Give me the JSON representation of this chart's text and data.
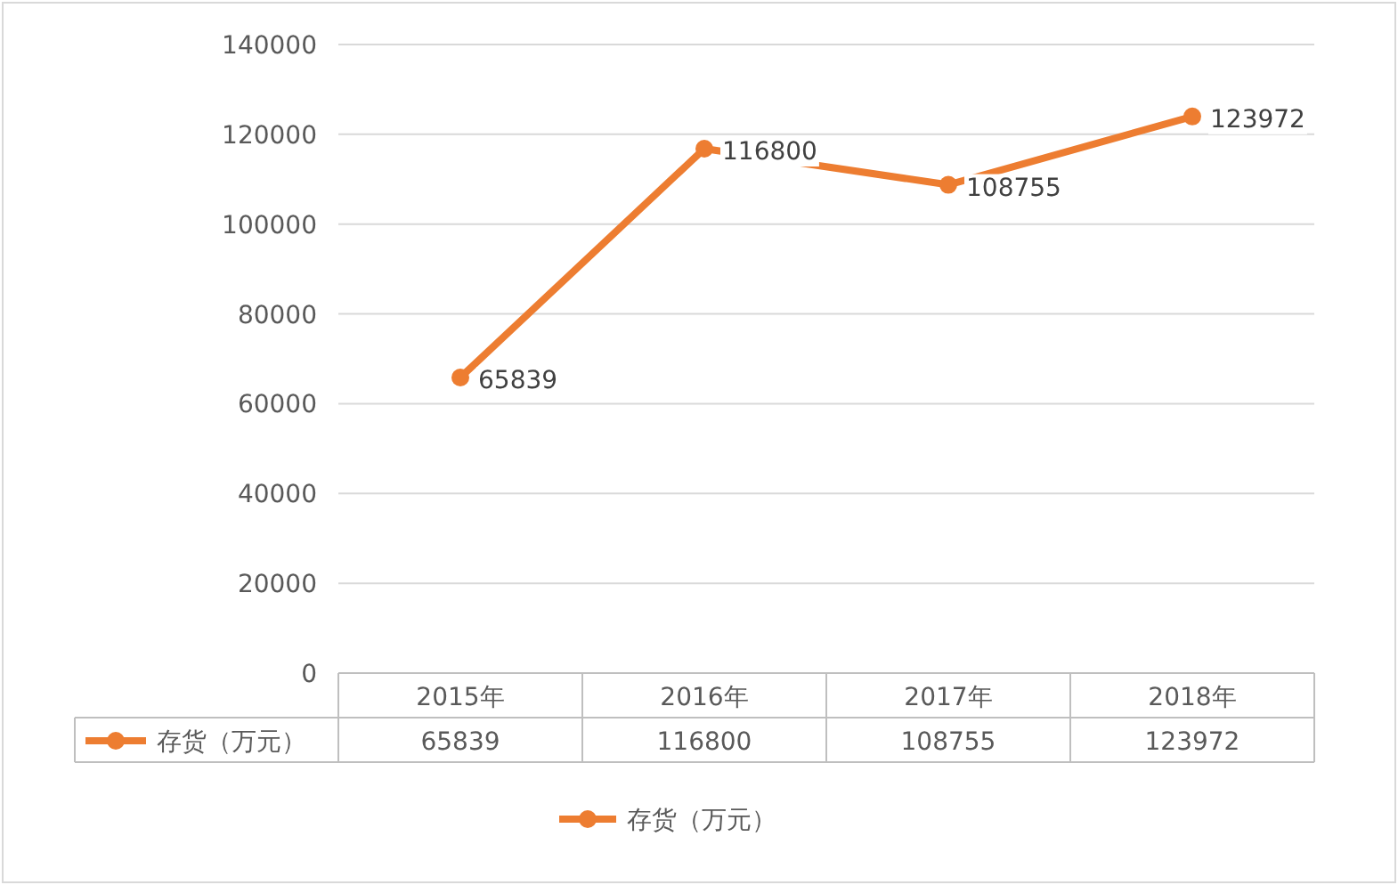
{
  "chart_data": {
    "type": "line",
    "categories": [
      "2015年",
      "2016年",
      "2017年",
      "2018年"
    ],
    "series": [
      {
        "name": "存货（万元）",
        "color": "#ed7d31",
        "values": [
          65839,
          116800,
          108755,
          123972
        ],
        "value_labels": [
          "65839",
          "116800",
          "108755",
          "123972"
        ]
      }
    ],
    "ylim": [
      0,
      140000
    ],
    "yticks": [
      0,
      20000,
      40000,
      60000,
      80000,
      100000,
      120000,
      140000
    ],
    "annotations": [
      "65839",
      "116800",
      "108755",
      "123972"
    ],
    "grid": "y",
    "legend": "bottom",
    "marker": "circle",
    "line_style": "solid",
    "data_labels": true
  }
}
